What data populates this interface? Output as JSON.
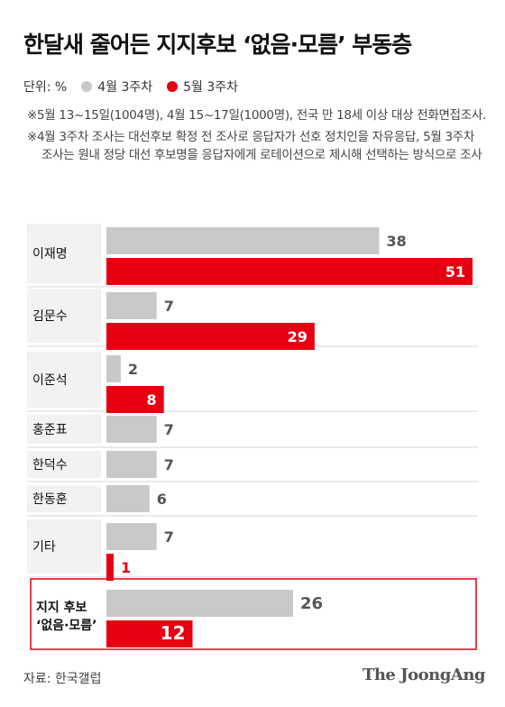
{
  "title": "한달새 줄어든 지지후보 ‘없음·모름’ 부동층",
  "legend": {
    "unit_label": "단위: %",
    "items": [
      {
        "label": "4월 3주차",
        "color": "#c8c9cb"
      },
      {
        "label": "5월 3주차",
        "color": "#e60012"
      }
    ]
  },
  "notes": [
    "※5월 13~15일(1004명), 4월 15~17일(1000명), 전국 만 18세 이상 대상 전화면접조사.",
    "※4월 3주차 조사는 대선후보 확정 전 조사로 응답자가 선호 정치인을 자유응답, 5월 3주차 조사는 원내 정당 대선 후보명을 응답자에게 로테이션으로 제시해 선택하는 방식으로 조사"
  ],
  "source": "자료: 한국갤럽",
  "brand": "The JoongAng",
  "chart_data": {
    "type": "bar",
    "orientation": "horizontal",
    "categories": [
      "이재명",
      "김문수",
      "이준석",
      "홍준표",
      "한덕수",
      "한동훈",
      "기타",
      "지지 후보 ‘없음·모름’"
    ],
    "series": [
      {
        "name": "4월 3주차",
        "color": "#c8c9cb",
        "values": [
          38,
          7,
          2,
          7,
          7,
          6,
          7,
          26
        ]
      },
      {
        "name": "5월 3주차",
        "color": "#e60012",
        "values": [
          51,
          29,
          8,
          null,
          null,
          null,
          1,
          12
        ]
      }
    ],
    "xlim": [
      0,
      51
    ],
    "highlight_category": "지지 후보 ‘없음·모름’",
    "highlight_color": "#e60012"
  }
}
